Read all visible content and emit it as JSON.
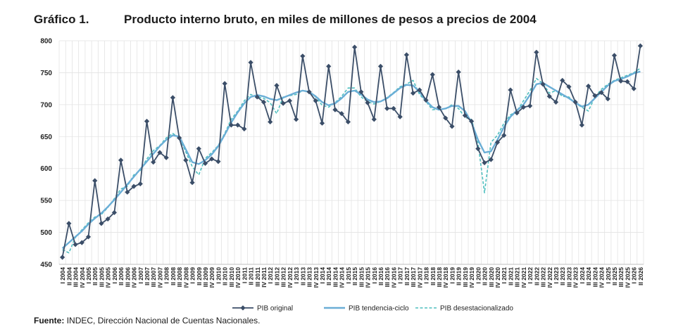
{
  "figure": {
    "number": "Gráfico 1.",
    "title": "Producto interno bruto, en miles de millones de pesos a precios de 2004"
  },
  "source": {
    "label": "Fuente:",
    "text": "INDEC, Dirección Nacional de Cuentas Nacionales."
  },
  "colors": {
    "original": "#3b4e68",
    "tendencia": "#6aaed6",
    "desest": "#4fbfbf",
    "grid": "#e3e3e3"
  },
  "chart_data": {
    "type": "line",
    "ylim": [
      450,
      800
    ],
    "yticks": [
      450,
      500,
      550,
      600,
      650,
      700,
      750,
      800
    ],
    "grid": true,
    "legend_position": "bottom",
    "categories": [
      "I 2004",
      "II 2004",
      "III 2004",
      "IV 2004",
      "I 2005",
      "II 2005",
      "III 2005",
      "IV 2005",
      "I 2006",
      "II 2006",
      "III 2006",
      "IV 2006",
      "I 2007",
      "II 2007",
      "III 2007",
      "IV 2007",
      "I 2008",
      "II 2008",
      "III 2008",
      "IV 2008",
      "I 2009",
      "II 2009",
      "III 2009",
      "IV 2009",
      "I 2010",
      "II 2010",
      "III 2010",
      "IV 2010",
      "I 2011",
      "II 2011",
      "III 2011",
      "IV 2011",
      "I 2012",
      "II 2012",
      "III 2012",
      "IV 2012",
      "I 2013",
      "II 2013",
      "III 2013",
      "IV 2013",
      "I 2014",
      "II 2014",
      "III 2014",
      "IV 2014",
      "I 2015",
      "II 2015",
      "III 2015",
      "IV 2015",
      "I 2016",
      "II 2016",
      "III 2016",
      "IV 2016",
      "I 2017",
      "II 2017",
      "III 2017",
      "IV 2017",
      "I 2018",
      "II 2018",
      "III 2018",
      "IV 2018",
      "I 2019",
      "II 2019",
      "III 2019",
      "IV 2019",
      "I 2020",
      "II 2020",
      "III 2020",
      "IV 2020",
      "I 2021",
      "II 2021",
      "III 2021",
      "IV 2021",
      "I 2022",
      "II 2022",
      "III 2022",
      "IV 2022",
      "I 2023",
      "II 2023",
      "III 2023",
      "IV 2023",
      "I 2024",
      "II 2024",
      "III 2024",
      "IV 2024",
      "I 2025",
      "II 2025",
      "III 2025",
      "IV 2025",
      "I 2026",
      "II 2026"
    ],
    "series": [
      {
        "name": "PIB original",
        "style": "original",
        "values": [
          461,
          514,
          481,
          484,
          493,
          581,
          514,
          521,
          531,
          613,
          563,
          572,
          576,
          674,
          610,
          625,
          617,
          711,
          648,
          613,
          578,
          631,
          608,
          615,
          611,
          733,
          668,
          668,
          662,
          766,
          712,
          704,
          673,
          730,
          702,
          706,
          677,
          776,
          720,
          706,
          671,
          760,
          692,
          686,
          673,
          790,
          720,
          703,
          677,
          760,
          694,
          694,
          681,
          778,
          718,
          723,
          707,
          747,
          696,
          679,
          666,
          751,
          683,
          674,
          631,
          609,
          614,
          641,
          652,
          723,
          687,
          696,
          698,
          782,
          732,
          713,
          704,
          738,
          728,
          704,
          668,
          729,
          714,
          719,
          709,
          777,
          737,
          736,
          725,
          792
        ]
      },
      {
        "name": "PIB tendencia-ciclo",
        "style": "tendencia",
        "values": [
          475,
          484,
          493,
          502,
          513,
          522,
          530,
          540,
          551,
          563,
          575,
          587,
          599,
          611,
          623,
          635,
          645,
          652,
          650,
          630,
          610,
          607,
          613,
          622,
          635,
          653,
          672,
          688,
          702,
          712,
          715,
          713,
          709,
          707,
          711,
          715,
          719,
          722,
          720,
          713,
          704,
          699,
          702,
          710,
          720,
          722,
          716,
          708,
          704,
          705,
          710,
          718,
          726,
          731,
          730,
          720,
          706,
          696,
          692,
          694,
          698,
          698,
          690,
          672,
          645,
          625,
          627,
          645,
          665,
          681,
          691,
          700,
          715,
          732,
          734,
          728,
          722,
          716,
          710,
          703,
          697,
          700,
          710,
          720,
          730,
          737,
          740,
          744,
          749,
          752
        ]
      },
      {
        "name": "PIB desestacionalizado",
        "style": "desest",
        "values": [
          473,
          468,
          492,
          504,
          515,
          524,
          528,
          539,
          553,
          568,
          572,
          590,
          597,
          615,
          628,
          636,
          648,
          655,
          648,
          626,
          603,
          590,
          616,
          625,
          636,
          655,
          677,
          690,
          706,
          716,
          712,
          710,
          703,
          686,
          712,
          714,
          716,
          722,
          720,
          712,
          699,
          696,
          703,
          713,
          726,
          726,
          712,
          705,
          701,
          705,
          711,
          719,
          728,
          732,
          738,
          716,
          705,
          692,
          693,
          693,
          700,
          694,
          680,
          677,
          640,
          562,
          641,
          652,
          671,
          684,
          690,
          706,
          722,
          741,
          733,
          718,
          722,
          713,
          712,
          702,
          696,
          690,
          712,
          724,
          732,
          738,
          742,
          746,
          750,
          757
        ]
      }
    ]
  }
}
